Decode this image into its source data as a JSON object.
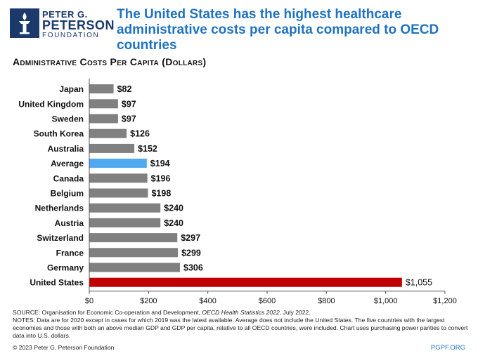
{
  "brand": {
    "line1": "PETER G.",
    "line2": "PETERSON",
    "line3": "FOUNDATION",
    "color": "#1b3a6b"
  },
  "title": "The United States has the highest healthcare administrative costs per capita compared to OECD countries",
  "subtitle": "Administrative Costs Per Capita (Dollars)",
  "colors": {
    "default": "#808080",
    "average": "#4fa8f0",
    "highlight": "#c00000",
    "title": "#1f73c1"
  },
  "chart_data": {
    "type": "bar",
    "orientation": "horizontal",
    "categories": [
      "Japan",
      "United Kingdom",
      "Sweden",
      "South Korea",
      "Australia",
      "Average",
      "Canada",
      "Belgium",
      "Netherlands",
      "Austria",
      "Switzerland",
      "France",
      "Germany",
      "United States"
    ],
    "values": [
      82,
      97,
      97,
      126,
      152,
      194,
      196,
      198,
      240,
      240,
      297,
      299,
      306,
      1055
    ],
    "value_labels": [
      "$82",
      "$97",
      "$97",
      "$126",
      "$152",
      "$194",
      "$196",
      "$198",
      "$240",
      "$240",
      "$297",
      "$299",
      "$306",
      "$1,055"
    ],
    "bar_colors": [
      "default",
      "default",
      "default",
      "default",
      "default",
      "average",
      "default",
      "default",
      "default",
      "default",
      "default",
      "default",
      "default",
      "highlight"
    ],
    "xlim": [
      0,
      1200
    ],
    "xticks": [
      0,
      200,
      400,
      600,
      800,
      1000,
      1200
    ],
    "xtick_labels": [
      "$0",
      "$200",
      "$400",
      "$600",
      "$800",
      "$1,000",
      "$1,200"
    ],
    "grid": false
  },
  "footer": {
    "source_prefix": "SOURCE: Organisation for Economic Co-operation and Development, ",
    "source_title": "OECD Health Statistics 2022",
    "source_suffix": ", July 2022.",
    "notes": "NOTES: Data are for 2020 except in cases for which 2019 was the latest available. Average does not include the United States. The five countries with the largest economies and those with both an above median GDP and GDP per capita, relative to all OECD countries, were included. Chart uses purchasing power parities to convert data into U.S. dollars.",
    "copyright": "© 2023 Peter G. Peterson Foundation",
    "site": "PGPF.ORG"
  }
}
